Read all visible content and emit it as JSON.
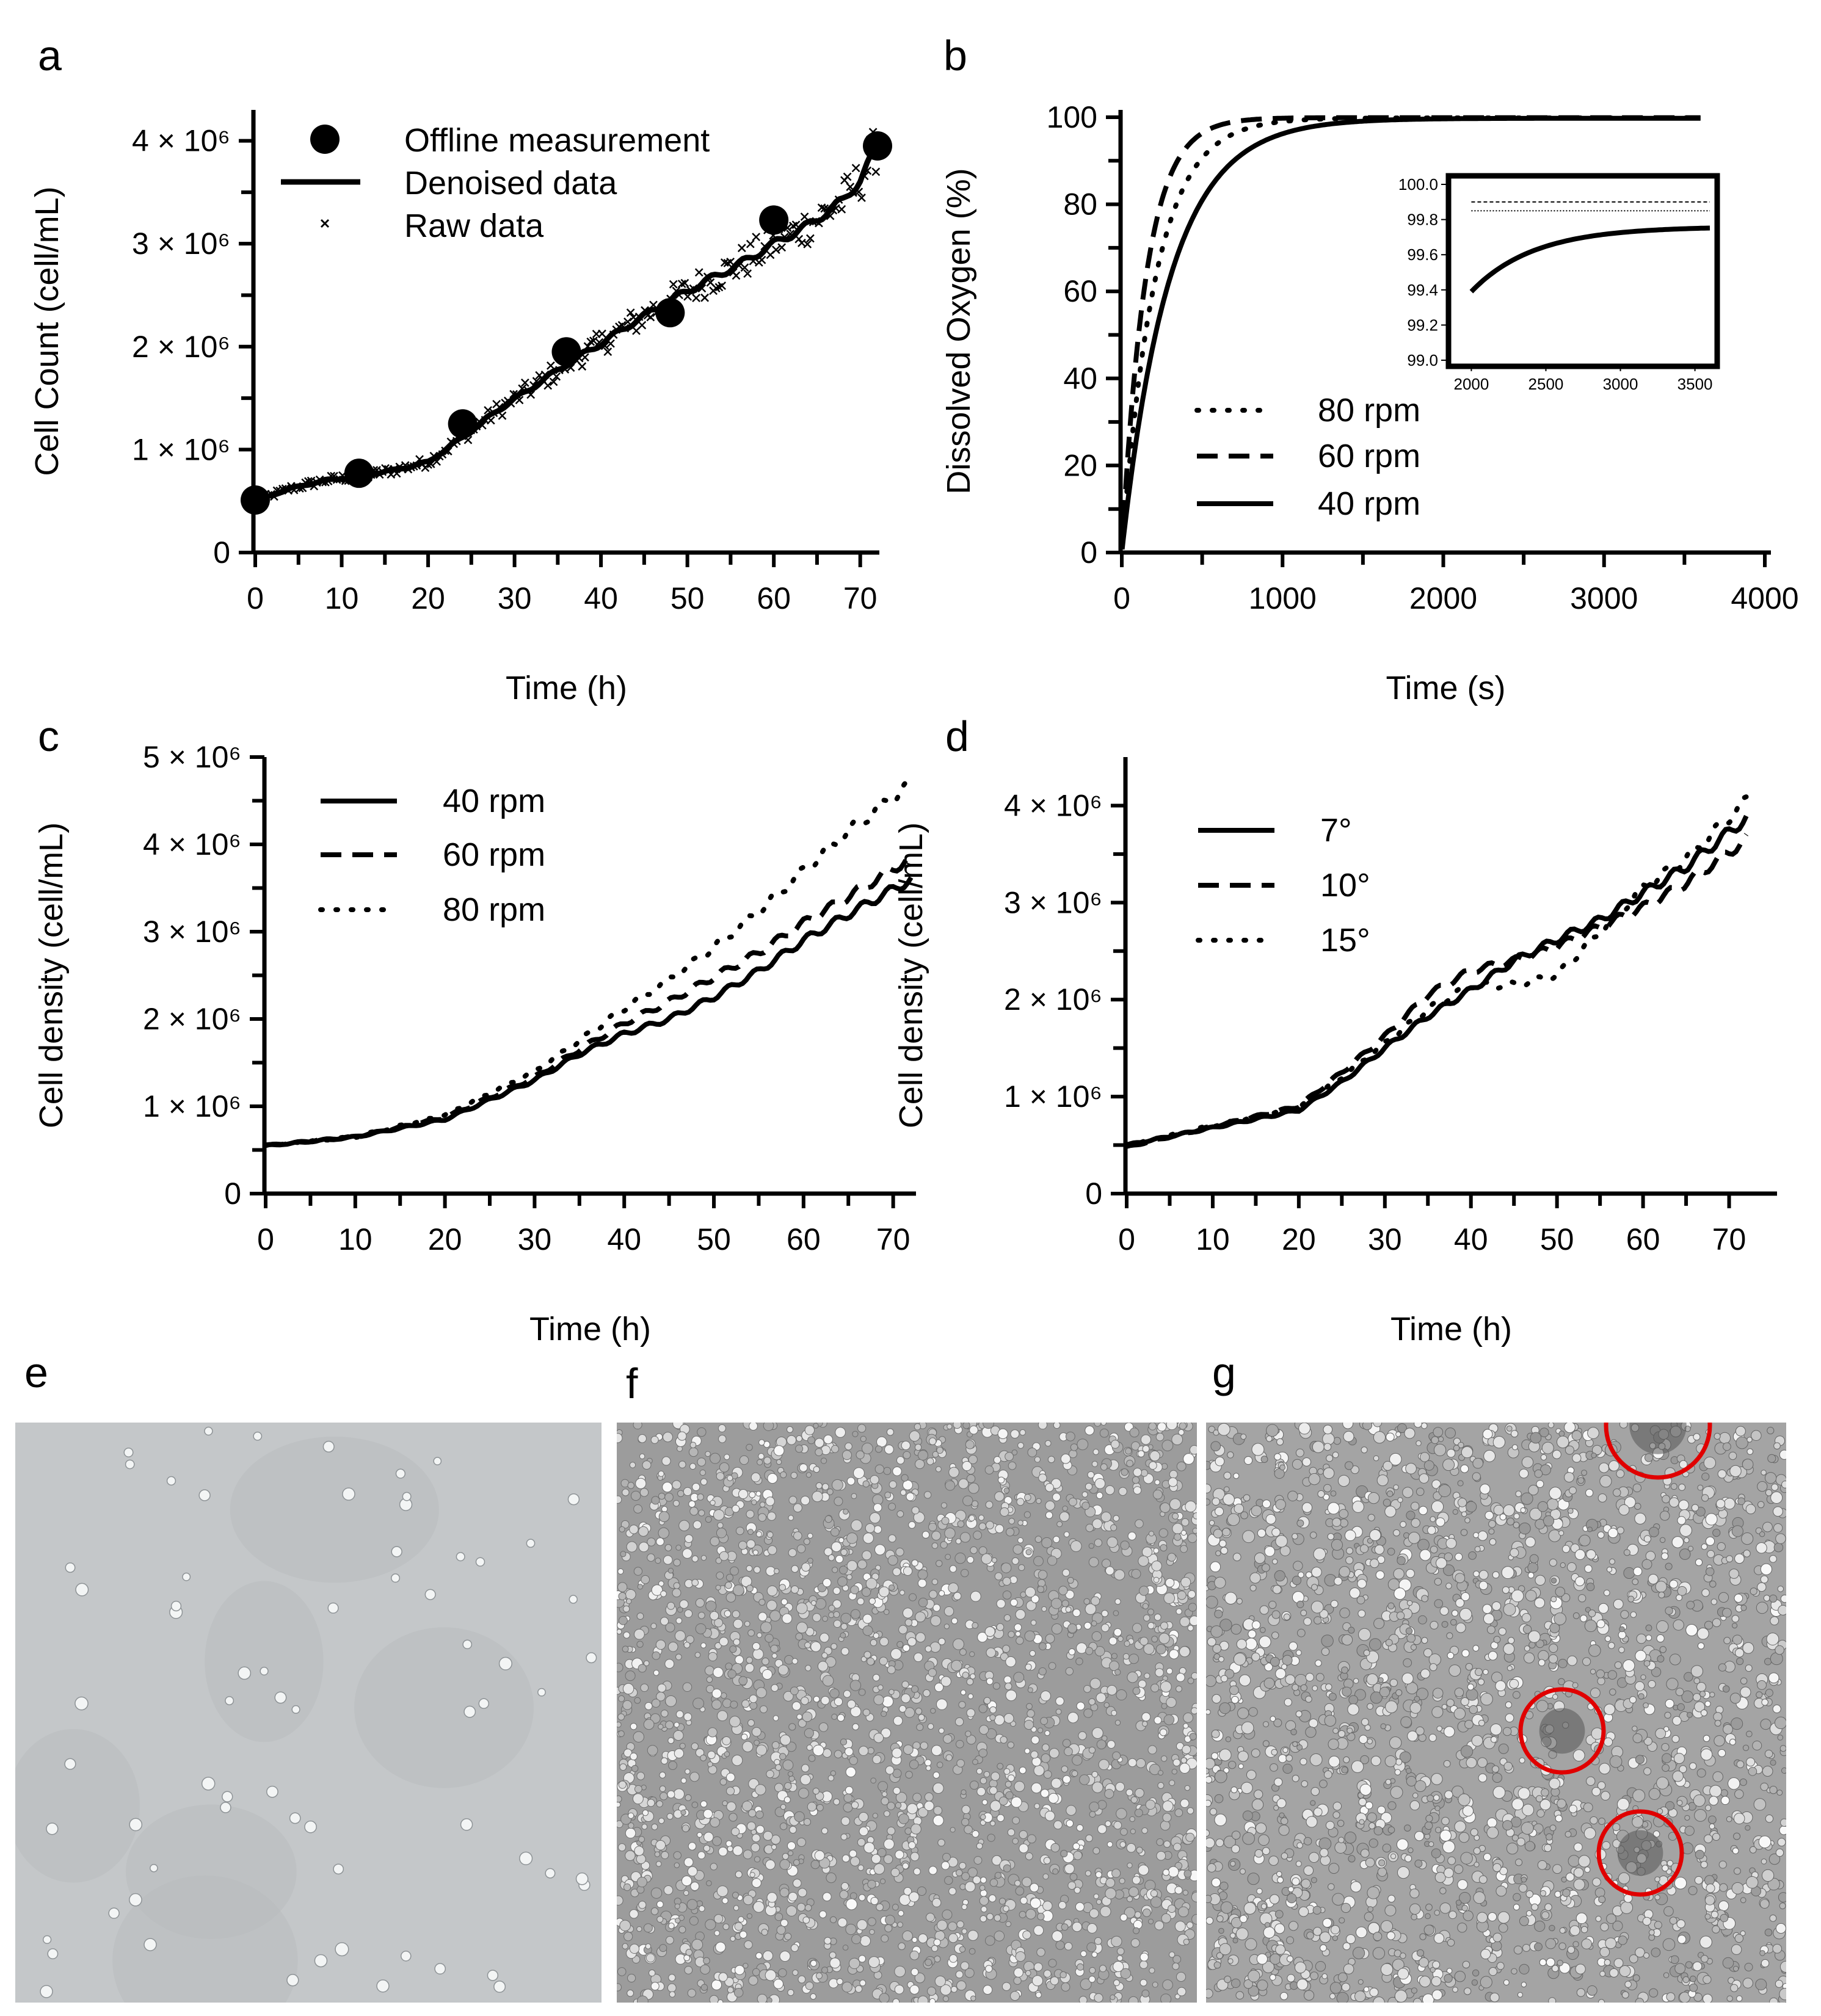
{
  "panels": {
    "a": "a",
    "b": "b",
    "c": "c",
    "d": "d",
    "e": "e",
    "f": "f",
    "g": "g"
  },
  "chart_data": [
    {
      "id": "a",
      "type": "line",
      "xlabel": "Time (h)",
      "ylabel": "Cell Count (cell/mL)",
      "xlim": [
        0,
        72
      ],
      "ylim": [
        0,
        4300000
      ],
      "xticks": [
        0,
        10,
        20,
        30,
        40,
        50,
        60,
        70
      ],
      "yticks": [
        0,
        1000000,
        2000000,
        3000000,
        4000000
      ],
      "ytick_labels": [
        "0",
        "1 × 10⁶",
        "2 × 10⁶",
        "3 × 10⁶",
        "4 × 10⁶"
      ],
      "legend": [
        "Offline measurement",
        "Denoised data",
        "Raw data"
      ],
      "legend_position": "top-left",
      "offline_measurement": {
        "x": [
          0,
          12,
          24,
          36,
          48,
          60,
          72
        ],
        "y": [
          510000,
          770000,
          1250000,
          1950000,
          2330000,
          3230000,
          3950000
        ]
      },
      "denoised": {
        "x": [
          0,
          4,
          8,
          12,
          16,
          20,
          24,
          28,
          32,
          36,
          40,
          44,
          48,
          52,
          56,
          60,
          64,
          68,
          70,
          72
        ],
        "y": [
          500000,
          620000,
          700000,
          740000,
          800000,
          880000,
          1120000,
          1380000,
          1600000,
          1830000,
          2030000,
          2250000,
          2450000,
          2630000,
          2800000,
          3000000,
          3180000,
          3420000,
          3620000,
          3950000
        ]
      },
      "raw_scatter_band": 0.06
    },
    {
      "id": "b",
      "type": "line",
      "xlabel": "Time (s)",
      "ylabel": "Dissolved Oxygen (%)",
      "xlim": [
        0,
        4000
      ],
      "ylim": [
        0,
        100
      ],
      "xticks": [
        0,
        1000,
        2000,
        3000,
        4000
      ],
      "yticks": [
        0,
        20,
        40,
        60,
        80,
        100
      ],
      "legend_position": "bottom-left",
      "series": [
        {
          "name": "80 rpm",
          "style": "dotted",
          "tau": 210,
          "plateau": 99.85
        },
        {
          "name": "60 rpm",
          "style": "dashed",
          "tau": 150,
          "plateau": 99.9
        },
        {
          "name": "40 rpm",
          "style": "solid",
          "tau": 300,
          "plateau": 99.76
        }
      ],
      "x_end": 3600,
      "inset": {
        "xlim": [
          1900,
          3600
        ],
        "ylim": [
          99.0,
          100.0
        ],
        "xticks": [
          2000,
          2500,
          3000,
          3500
        ],
        "yticks": [
          99.0,
          99.2,
          99.4,
          99.6,
          99.8,
          100.0
        ],
        "ytick_labels": [
          "99.0",
          "99.2",
          "99.4",
          "99.6",
          "99.8",
          "100.0"
        ],
        "solid_start": 99.39
      }
    },
    {
      "id": "c",
      "type": "line",
      "xlabel": "Time (h)",
      "ylabel": "Cell density (cell/mL)",
      "xlim": [
        0,
        72
      ],
      "ylim": [
        0,
        5000000
      ],
      "xticks": [
        0,
        10,
        20,
        30,
        40,
        50,
        60,
        70
      ],
      "yticks": [
        0,
        1000000,
        2000000,
        3000000,
        4000000,
        5000000
      ],
      "ytick_labels": [
        "0",
        "1 × 10⁶",
        "2 × 10⁶",
        "3 × 10⁶",
        "4 × 10⁶",
        "5 × 10⁶"
      ],
      "legend_position": "top-left",
      "series": [
        {
          "name": "40 rpm",
          "style": "solid",
          "x": [
            0,
            10,
            20,
            30,
            35,
            40,
            45,
            50,
            55,
            60,
            65,
            72
          ],
          "y": [
            550000,
            650000,
            850000,
            1300000,
            1600000,
            1830000,
            2000000,
            2250000,
            2550000,
            2900000,
            3200000,
            3600000
          ]
        },
        {
          "name": "60 rpm",
          "style": "dashed",
          "x": [
            0,
            10,
            20,
            30,
            35,
            40,
            45,
            50,
            55,
            60,
            65,
            72
          ],
          "y": [
            550000,
            650000,
            870000,
            1330000,
            1650000,
            1950000,
            2200000,
            2480000,
            2760000,
            3100000,
            3400000,
            3850000
          ]
        },
        {
          "name": "80 rpm",
          "style": "dotted",
          "x": [
            0,
            10,
            20,
            30,
            35,
            40,
            45,
            50,
            55,
            60,
            65,
            72
          ],
          "y": [
            550000,
            650000,
            900000,
            1400000,
            1750000,
            2120000,
            2450000,
            2820000,
            3230000,
            3700000,
            4150000,
            4700000
          ]
        }
      ]
    },
    {
      "id": "d",
      "type": "line",
      "xlabel": "Time (h)",
      "ylabel": "Cell density (cell/mL)",
      "xlim": [
        0,
        75
      ],
      "ylim": [
        0,
        4500000
      ],
      "xticks": [
        0,
        10,
        20,
        30,
        40,
        50,
        60,
        70
      ],
      "yticks": [
        0,
        1000000,
        2000000,
        3000000,
        4000000
      ],
      "ytick_labels": [
        "0",
        "1 × 10⁶",
        "2 × 10⁶",
        "3 × 10⁶",
        "4 × 10⁶"
      ],
      "legend_position": "top-left",
      "series": [
        {
          "name": "7°",
          "style": "solid",
          "x": [
            0,
            10,
            20,
            25,
            30,
            35,
            40,
            45,
            50,
            55,
            60,
            65,
            72
          ],
          "y": [
            500000,
            680000,
            860000,
            1150000,
            1500000,
            1830000,
            2100000,
            2400000,
            2620000,
            2820000,
            3100000,
            3370000,
            3870000
          ]
        },
        {
          "name": "10°",
          "style": "dashed",
          "x": [
            0,
            10,
            20,
            25,
            30,
            35,
            40,
            45,
            50,
            55,
            60,
            65,
            72
          ],
          "y": [
            480000,
            690000,
            900000,
            1250000,
            1620000,
            2050000,
            2300000,
            2400000,
            2550000,
            2750000,
            2950000,
            3200000,
            3650000
          ]
        },
        {
          "name": "15°",
          "style": "dotted",
          "x": [
            0,
            10,
            20,
            25,
            30,
            35,
            40,
            45,
            50,
            55,
            60,
            65,
            72
          ],
          "y": [
            500000,
            700000,
            880000,
            1200000,
            1550000,
            1900000,
            2150000,
            2150000,
            2250000,
            2700000,
            3150000,
            3450000,
            4050000
          ]
        }
      ]
    }
  ],
  "micrographs": {
    "e": {
      "description_free_cells": 64,
      "background": "#c5c8ca",
      "cell_color": "#f2f4f4"
    },
    "f": {
      "background": "#9c9c9c"
    },
    "g": {
      "background": "#a5a5a5",
      "circle_color": "#e00000"
    }
  }
}
